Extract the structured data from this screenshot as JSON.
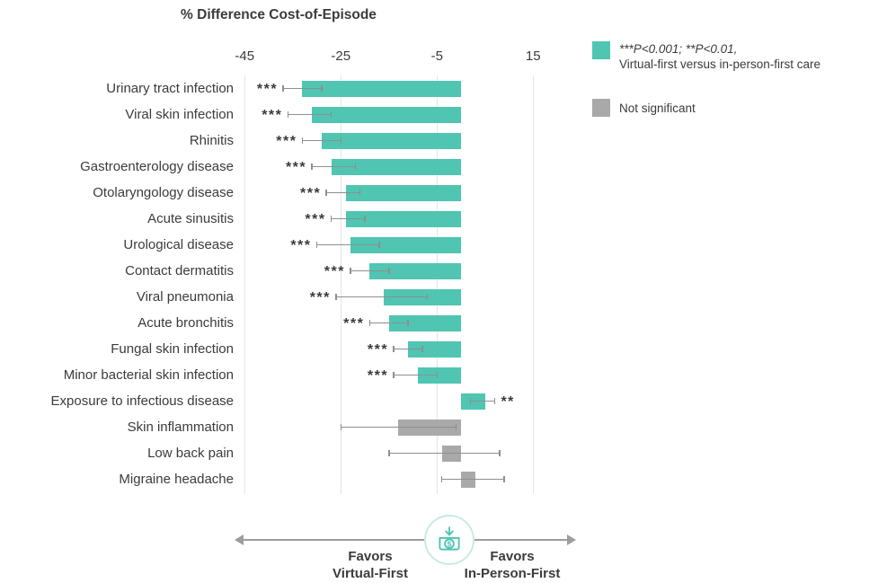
{
  "title": "% Difference Cost-of-Episode",
  "colors": {
    "significant": "#4FC5B2",
    "not_significant": "#A9A9A9",
    "whisker": "#8F8F8F",
    "gridline": "#E5E5E5",
    "arrow": "#9D9D9D",
    "text": "#3B3B3B",
    "icon_circle_border": "#C9EAE4"
  },
  "chart_data": {
    "type": "bar",
    "orientation": "horizontal",
    "title": "% Difference Cost-of-Episode",
    "xlabel": "",
    "xlim": [
      -50,
      20
    ],
    "xticks": [
      -45,
      -25,
      -5,
      15
    ],
    "categories": [
      "Urinary tract infection",
      "Viral skin infection",
      "Rhinitis",
      "Gastroenterology disease",
      "Otolaryngology disease",
      "Acute sinusitis",
      "Urological disease",
      "Contact dermatitis",
      "Viral pneumonia",
      "Acute bronchitis",
      "Fungal skin infection",
      "Minor bacterial skin infection",
      "Exposure to infectious disease",
      "Skin inflammation",
      "Low back pain",
      "Migraine headache"
    ],
    "values": [
      -33,
      -31,
      -29,
      -27,
      -24,
      -24,
      -23,
      -19,
      -16,
      -15,
      -11,
      -9,
      5,
      -13,
      -4,
      3
    ],
    "ci_low": [
      -37,
      -36,
      -33,
      -31,
      -28,
      -27,
      -30,
      -23,
      -26,
      -19,
      -14,
      -14,
      2,
      -25,
      -15,
      -4
    ],
    "ci_high": [
      -29,
      -27,
      -25,
      -22,
      -21,
      -20,
      -17,
      -15,
      -7,
      -11,
      -8,
      -5,
      7,
      -1,
      8,
      9
    ],
    "significance": [
      "***",
      "***",
      "***",
      "***",
      "***",
      "***",
      "***",
      "***",
      "***",
      "***",
      "***",
      "***",
      "**",
      "",
      "",
      ""
    ]
  },
  "legend": {
    "significant_line1": "***P<0.001; **P<0.01,",
    "significant_line2": "Virtual-first versus in-person-first care",
    "not_significant": "Not significant"
  },
  "footer": {
    "left_line1": "Favors",
    "left_line2": "Virtual-First",
    "right_line1": "Favors",
    "right_line2": "In-Person-First"
  }
}
